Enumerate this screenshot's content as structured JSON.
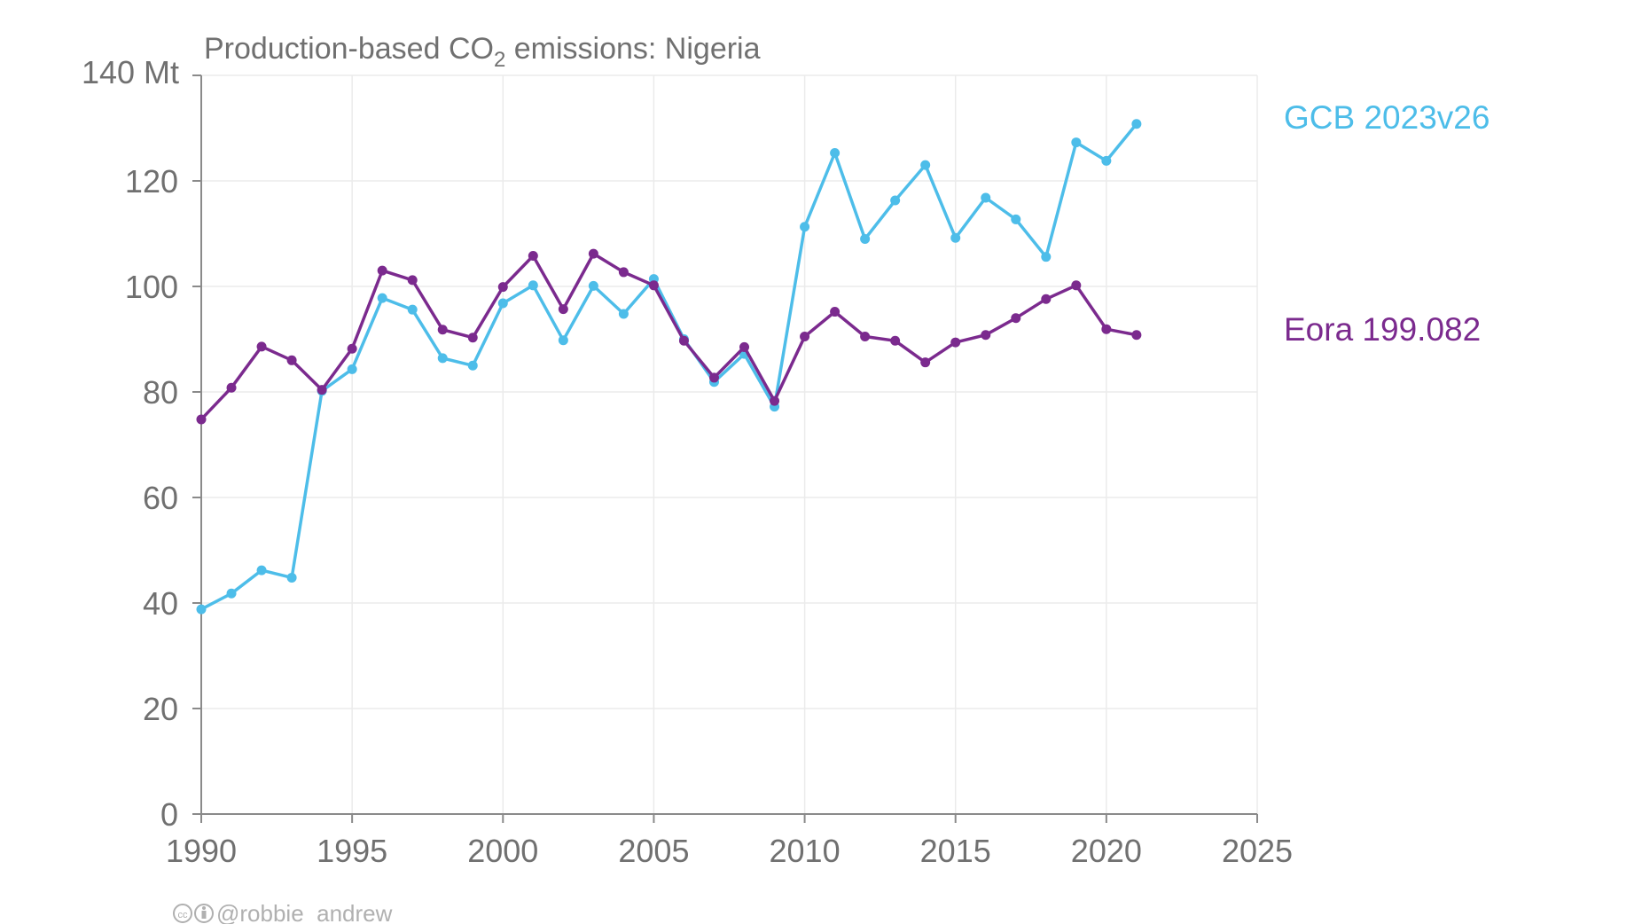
{
  "chart_data": {
    "type": "line",
    "title_main": "Production-based CO",
    "title_sub": "2",
    "title_rest": " emissions: Nigeria",
    "y_unit_label": "140 Mt",
    "ylim": [
      0,
      140
    ],
    "xlim": [
      1990,
      2025
    ],
    "y_ticks": [
      "0",
      "20",
      "40",
      "60",
      "80",
      "100",
      "120"
    ],
    "x_ticks": [
      "1990",
      "1995",
      "2000",
      "2005",
      "2010",
      "2015",
      "2020",
      "2025"
    ],
    "grid": true,
    "x": [
      1990,
      1991,
      1992,
      1993,
      1994,
      1995,
      1996,
      1997,
      1998,
      1999,
      2000,
      2001,
      2002,
      2003,
      2004,
      2005,
      2006,
      2007,
      2008,
      2009,
      2010,
      2011,
      2012,
      2013,
      2014,
      2015,
      2016,
      2017,
      2018,
      2019,
      2020,
      2021
    ],
    "series": [
      {
        "name": "GCB 2023v26",
        "color": "#4dbde9",
        "values": [
          38.8,
          41.8,
          46.2,
          44.8,
          80.2,
          84.3,
          97.8,
          95.6,
          86.4,
          85.0,
          96.8,
          100.2,
          89.8,
          100.1,
          94.8,
          101.4,
          90.0,
          81.9,
          87.2,
          77.2,
          111.3,
          125.3,
          109.0,
          116.3,
          123.0,
          109.2,
          116.8,
          112.7,
          105.6,
          127.3,
          123.8,
          130.8
        ]
      },
      {
        "name": "Eora 199.082",
        "color": "#7b2a8e",
        "values": [
          74.8,
          80.8,
          88.6,
          86.0,
          80.4,
          88.2,
          103.0,
          101.2,
          91.8,
          90.3,
          99.9,
          105.8,
          95.7,
          106.2,
          102.7,
          100.2,
          89.7,
          82.7,
          88.5,
          78.3,
          90.5,
          95.2,
          90.5,
          89.7,
          85.6,
          89.4,
          90.8,
          94.0,
          97.6,
          100.2,
          91.9,
          90.8
        ]
      }
    ]
  },
  "credit": {
    "icons": "cc-by-icon",
    "handle": "@robbie_andrew"
  }
}
